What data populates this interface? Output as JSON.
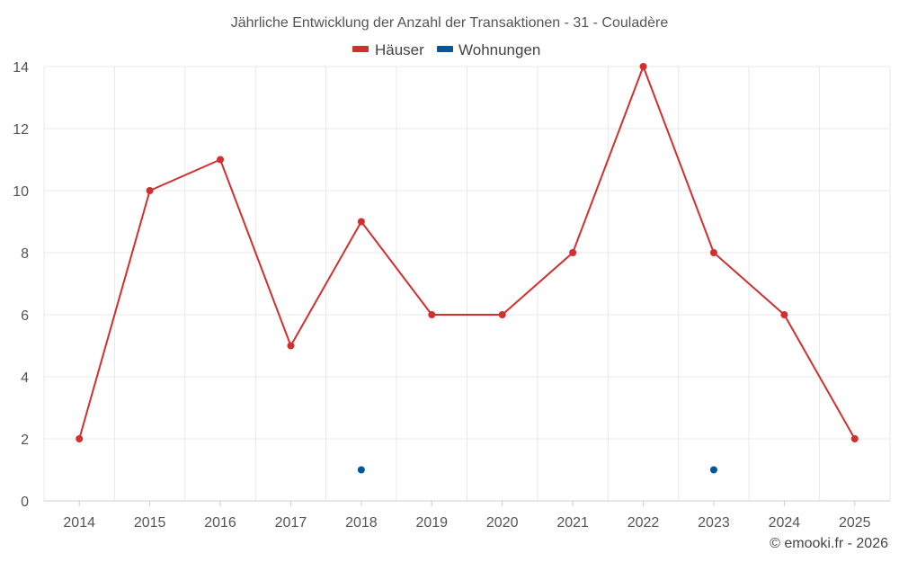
{
  "chart_data": {
    "type": "line",
    "title": "Jährliche Entwicklung der Anzahl der Transaktionen - 31 - Couladère",
    "categories": [
      "2014",
      "2015",
      "2016",
      "2017",
      "2018",
      "2019",
      "2020",
      "2021",
      "2022",
      "2023",
      "2024",
      "2025"
    ],
    "series": [
      {
        "name": "Häuser",
        "color": "#d32f2f",
        "line": true,
        "values": [
          2,
          10,
          11,
          5,
          9,
          6,
          6,
          8,
          14,
          8,
          6,
          2
        ]
      },
      {
        "name": "Wohnungen",
        "color": "#01579b",
        "line": false,
        "values": [
          null,
          null,
          null,
          null,
          1,
          null,
          null,
          null,
          null,
          1,
          null,
          null
        ]
      }
    ],
    "y_ticks": [
      0,
      2,
      4,
      6,
      8,
      10,
      12,
      14
    ],
    "ylim": [
      0,
      14
    ],
    "grid": true,
    "legend_position": "top-center",
    "xlabel": "",
    "ylabel": ""
  },
  "credit": "© emooki.fr - 2026"
}
